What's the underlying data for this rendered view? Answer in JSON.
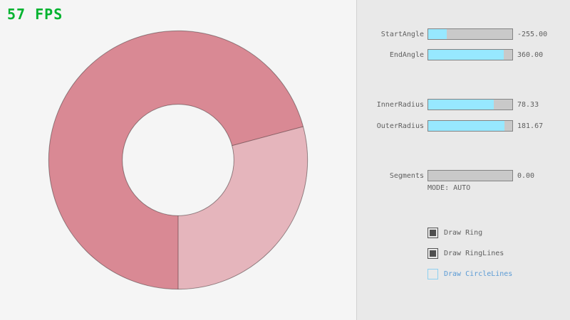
{
  "fps_label": "57 FPS",
  "colors": {
    "canvas-bg": "#f5f5f5",
    "panel-bg": "#e9e9e9",
    "panel-border": "#d2d2d2",
    "fps-green": "#00b32f",
    "ring-overlap": "#d98994",
    "ring-single": "#e5b5bc",
    "ring-line": "rgba(0,0,0,0.38)",
    "slider-border": "#838383",
    "slider-track": "#c9c9c9",
    "slider-fill": "#97e8ff",
    "text-gray": "#5f5f5f",
    "check-dark": "#4f4f4f",
    "focus-blue-border": "#8ed0f0",
    "focus-blue-text": "#5b9bd5"
  },
  "ring": {
    "start_angle": "-255.00",
    "end_angle": "360.00",
    "inner_radius": "78.33",
    "outer_radius": "181.67",
    "segments": "0.00",
    "mode": "AUTO"
  },
  "controls": {
    "sliders": [
      {
        "label": "StartAngle",
        "value": "-255.00",
        "fill_pct": 21.7
      },
      {
        "label": "EndAngle",
        "value": "360.00",
        "fill_pct": 90
      },
      {
        "label": "InnerRadius",
        "value": "78.33",
        "fill_pct": 78.3
      },
      {
        "label": "OuterRadius",
        "value": "181.67",
        "fill_pct": 90.8
      },
      {
        "label": "Segments",
        "value": "0.00",
        "fill_pct": 0
      }
    ],
    "mode_label": "MODE: AUTO",
    "checkboxes": [
      {
        "label": "Draw Ring",
        "checked": true,
        "state": "normal"
      },
      {
        "label": "Draw RingLines",
        "checked": true,
        "state": "normal"
      },
      {
        "label": "Draw CircleLines",
        "checked": false,
        "state": "focused"
      }
    ]
  }
}
